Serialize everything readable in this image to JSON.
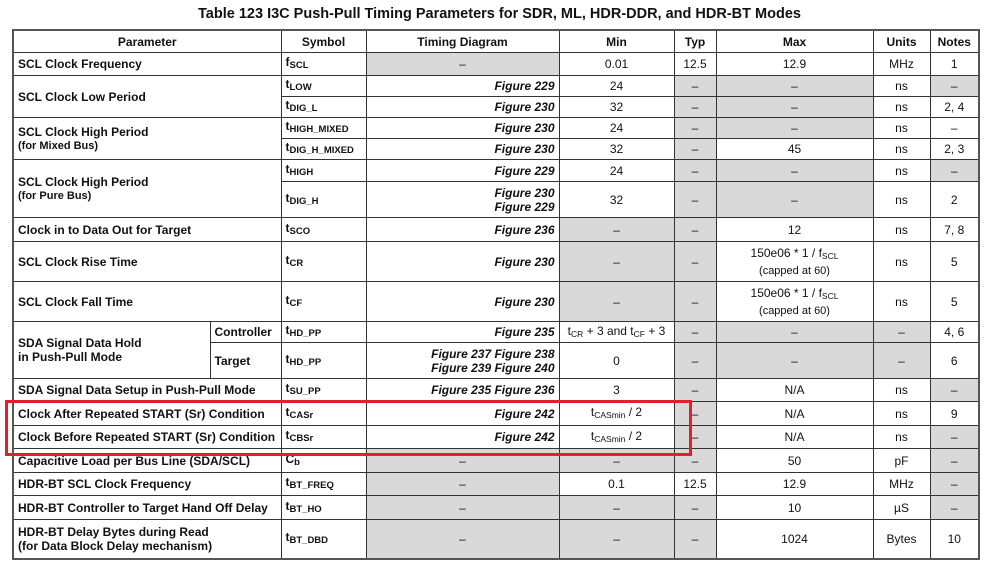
{
  "title": "Table 123 I3C Push-Pull Timing Parameters for SDR, ML, HDR-DDR, and HDR-BT Modes",
  "headers": {
    "parameter": "Parameter",
    "symbol": "Symbol",
    "timing": "Timing Diagram",
    "min": "Min",
    "typ": "Typ",
    "max": "Max",
    "units": "Units",
    "notes": "Notes"
  },
  "highlight_color": "#e0202a",
  "shade_color": "#d9d9d9",
  "rows": [
    {
      "param": {
        "main": "SCL Clock Frequency"
      },
      "span": 1,
      "symbol": {
        "b": "f",
        "s": "SCL"
      },
      "timing": "–",
      "min": "0.01",
      "typ": "12.5",
      "max": "12.9",
      "units": "MHz",
      "notes": "1",
      "shaded": [
        "timing"
      ]
    },
    {
      "param": {
        "main": "SCL Clock Low Period"
      },
      "span": 2,
      "symbol": {
        "b": "t",
        "s": "LOW"
      },
      "timing": "Figure 229",
      "min": "24",
      "typ": "–",
      "max": "–",
      "units": "ns",
      "notes": "–",
      "shaded": [
        "typ",
        "max",
        "notes"
      ]
    },
    {
      "symbol": {
        "b": "t",
        "s": "DIG_L"
      },
      "timing": "Figure 230",
      "min": "32",
      "typ": "–",
      "max": "–",
      "units": "ns",
      "notes": "2, 4",
      "shaded": [
        "typ",
        "max"
      ]
    },
    {
      "param": {
        "main": "SCL Clock High Period",
        "note": "(for Mixed Bus)"
      },
      "span": 2,
      "symbol": {
        "b": "t",
        "s": "HIGH_MIXED"
      },
      "timing": "Figure 230",
      "min": "24",
      "typ": "–",
      "max": "–",
      "units": "ns",
      "notes": "–",
      "shaded": [
        "typ",
        "max"
      ]
    },
    {
      "symbol": {
        "b": "t",
        "s": "DIG_H_MIXED"
      },
      "timing": "Figure 230",
      "min": "32",
      "typ": "–",
      "max": "45",
      "units": "ns",
      "notes": "2, 3",
      "shaded": [
        "typ"
      ]
    },
    {
      "param": {
        "main": "SCL Clock High Period",
        "note": "(for Pure Bus)"
      },
      "span": 2,
      "symbol": {
        "b": "t",
        "s": "HIGH"
      },
      "timing": "Figure 229",
      "min": "24",
      "typ": "–",
      "max": "–",
      "units": "ns",
      "notes": "–",
      "shaded": [
        "typ",
        "max",
        "notes"
      ]
    },
    {
      "symbol": {
        "b": "t",
        "s": "DIG_H"
      },
      "timing": [
        {
          "t": "Figure 230"
        },
        {
          "br": true
        },
        {
          "t": "Figure 229"
        }
      ],
      "min": "32",
      "typ": "–",
      "max": "–",
      "units": "ns",
      "notes": "2",
      "shaded": [
        "typ",
        "max"
      ]
    },
    {
      "param": {
        "main": "Clock in to Data Out for Target"
      },
      "span": 1,
      "symbol": {
        "b": "t",
        "s": "SCO"
      },
      "timing": "Figure 236",
      "min": "–",
      "typ": "–",
      "max": "12",
      "units": "ns",
      "notes": "7, 8",
      "shaded": [
        "min",
        "typ"
      ]
    },
    {
      "param": {
        "main": "SCL Clock Rise Time"
      },
      "span": 1,
      "symbol": {
        "b": "t",
        "s": "CR"
      },
      "timing": "Figure 230",
      "min": "–",
      "typ": "–",
      "max": [
        {
          "t": "150e06 * 1 / f"
        },
        {
          "sub": "SCL"
        },
        {
          "br": true
        },
        {
          "small": "(capped at 60)"
        }
      ],
      "units": "ns",
      "notes": "5",
      "shaded": [
        "min",
        "typ"
      ]
    },
    {
      "param": {
        "main": "SCL Clock Fall Time"
      },
      "span": 1,
      "symbol": {
        "b": "t",
        "s": "CF"
      },
      "timing": "Figure 230",
      "min": "–",
      "typ": "–",
      "max": [
        {
          "t": "150e06 * 1 / f"
        },
        {
          "sub": "SCL"
        },
        {
          "br": true
        },
        {
          "small": "(capped at 60)"
        }
      ],
      "units": "ns",
      "notes": "5",
      "shaded": [
        "min",
        "typ"
      ]
    },
    {
      "param": {
        "main": "SDA Signal Data Hold",
        "note2": "in Push-Pull Mode"
      },
      "span": 2,
      "sub": "Controller",
      "symbol": {
        "b": "t",
        "s": "HD_PP"
      },
      "timing": "Figure 235",
      "min": [
        {
          "t": "t"
        },
        {
          "sub": "CR"
        },
        {
          "t": " + 3 and t"
        },
        {
          "sub": "CF"
        },
        {
          "t": " + 3"
        }
      ],
      "typ": "–",
      "max": "–",
      "units": "–",
      "notes": "4, 6",
      "shaded": [
        "typ",
        "max",
        "units"
      ]
    },
    {
      "sub": "Target",
      "symbol": {
        "b": "t",
        "s": "HD_PP"
      },
      "timing": [
        {
          "t": "Figure 237 Figure 238"
        },
        {
          "br": true
        },
        {
          "t": "Figure 239 Figure 240"
        }
      ],
      "min": "0",
      "typ": "–",
      "max": "–",
      "units": "–",
      "notes": "6",
      "shaded": [
        "typ",
        "max",
        "units"
      ]
    },
    {
      "param": {
        "main": "SDA Signal Data Setup in Push-Pull Mode"
      },
      "span": 1,
      "symbol": {
        "b": "t",
        "s": "SU_PP"
      },
      "timing": "Figure 235 Figure 236",
      "min": "3",
      "typ": "–",
      "max": "N/A",
      "units": "ns",
      "notes": "–",
      "shaded": [
        "typ",
        "notes"
      ]
    },
    {
      "param": {
        "main": "Clock After Repeated START (Sr) Condition"
      },
      "span": 1,
      "symbol": {
        "b": "t",
        "s": "CASr"
      },
      "timing": "Figure 242",
      "min": [
        {
          "t": "t"
        },
        {
          "sub": "CASmin"
        },
        {
          "t": " / 2"
        }
      ],
      "typ": "–",
      "max": "N/A",
      "units": "ns",
      "notes": "9",
      "shaded": [
        "typ"
      ]
    },
    {
      "param": {
        "main": "Clock Before Repeated START (Sr) Condition"
      },
      "span": 1,
      "symbol": {
        "b": "t",
        "s": "CBSr"
      },
      "timing": "Figure 242",
      "min": [
        {
          "t": "t"
        },
        {
          "sub": "CASmin"
        },
        {
          "t": " / 2"
        }
      ],
      "typ": "–",
      "max": "N/A",
      "units": "ns",
      "notes": "–",
      "shaded": [
        "typ",
        "notes"
      ]
    },
    {
      "param": {
        "main": "Capacitive Load per Bus Line (SDA/SCL)"
      },
      "span": 1,
      "symbol": {
        "b": "C",
        "s": "b"
      },
      "timing": "–",
      "min": "–",
      "typ": "–",
      "max": "50",
      "units": "pF",
      "notes": "–",
      "shaded": [
        "timing",
        "min",
        "typ",
        "notes"
      ]
    },
    {
      "param": {
        "main": "HDR-BT SCL Clock Frequency"
      },
      "span": 1,
      "symbol": {
        "b": "t",
        "s": "BT_FREQ"
      },
      "timing": "–",
      "min": "0.1",
      "typ": "12.5",
      "max": "12.9",
      "units": "MHz",
      "notes": "–",
      "shaded": [
        "timing",
        "notes"
      ]
    },
    {
      "param": {
        "main": "HDR-BT Controller to Target Hand Off Delay"
      },
      "span": 1,
      "symbol": {
        "b": "t",
        "s": "BT_HO"
      },
      "timing": "–",
      "min": "–",
      "typ": "–",
      "max": "10",
      "units": "µS",
      "notes": "–",
      "shaded": [
        "timing",
        "min",
        "typ",
        "notes"
      ]
    },
    {
      "param": {
        "main": "HDR-BT Delay Bytes during Read",
        "note2": "(for Data Block Delay mechanism)"
      },
      "span": 1,
      "symbol": {
        "b": "t",
        "s": "BT_DBD"
      },
      "timing": "–",
      "min": "–",
      "typ": "–",
      "max": "1024",
      "units": "Bytes",
      "notes": "10",
      "shaded": [
        "timing",
        "min",
        "typ"
      ]
    }
  ]
}
